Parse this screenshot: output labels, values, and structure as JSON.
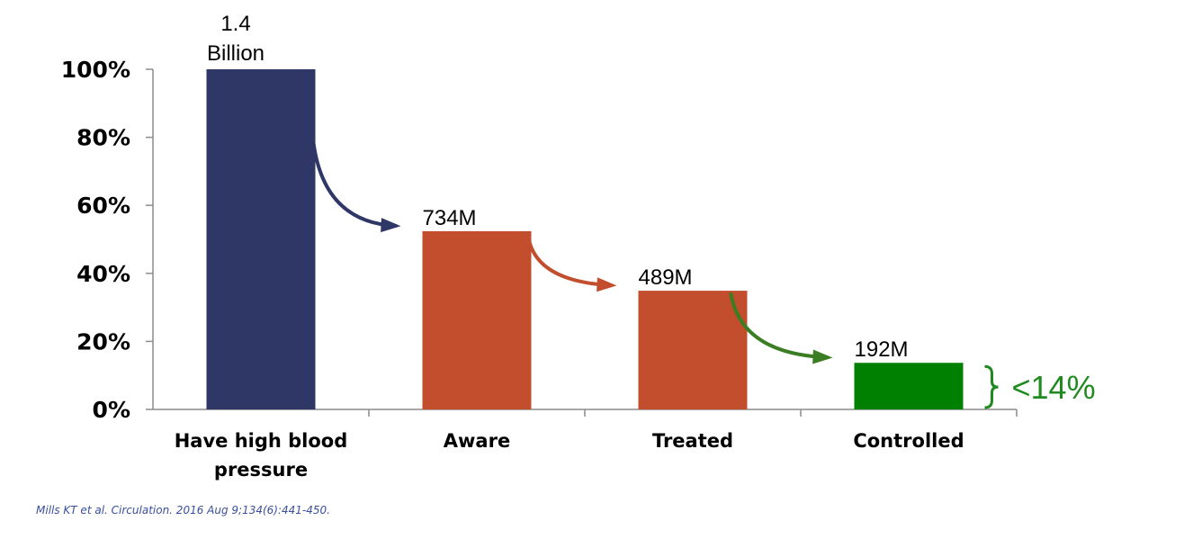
{
  "chart_data": {
    "type": "bar",
    "categories": [
      "Have high blood pressure",
      "Aware",
      "Treated",
      "Controlled"
    ],
    "values": [
      100,
      52.4,
      34.9,
      13.7
    ],
    "data_labels": [
      "1.4 Billion",
      "734M",
      "489M",
      "192M"
    ],
    "yticks": [
      "0%",
      "20%",
      "40%",
      "60%",
      "80%",
      "100%"
    ],
    "ylim": [
      0,
      100
    ],
    "xlabel": "",
    "ylabel": "",
    "grid": false,
    "colors": [
      "#2e3766",
      "#c24e2d",
      "#c24e2d",
      "#008000"
    ],
    "arrow_colors": [
      "#2e3766",
      "#c24e2d",
      "#3b7d23"
    ],
    "annotation": {
      "text": "<14%",
      "color": "#1f8a1f"
    }
  },
  "citation": "Mills KT et al. Circulation. 2016 Aug 9;134(6):441-450."
}
